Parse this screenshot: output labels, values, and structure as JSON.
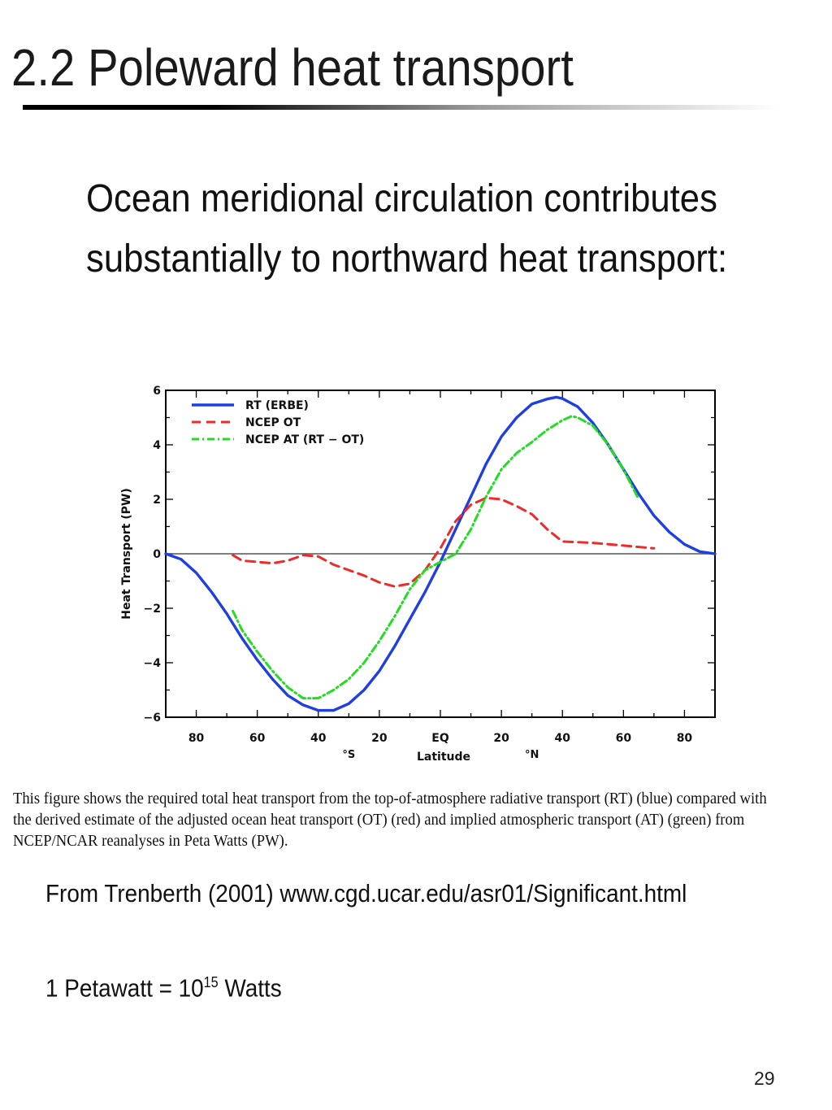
{
  "slide": {
    "title": "2.2 Poleward heat transport",
    "intro": "Ocean meridional circulation contributes substantially to northward heat transport:",
    "caption": "This figure shows the required total heat transport from the top-of-atmosphere radiative transport (RT) (blue) compared with the derived estimate of the adjusted ocean heat transport (OT) (red) and implied atmospheric transport (AT) (green) from NCEP/NCAR reanalyses in Peta  Watts (PW).",
    "source": "From Trenberth (2001) www.cgd.ucar.edu/asr01/Significant.html",
    "unit_note": {
      "prefix": "1 Petawatt = 10",
      "exponent": "15",
      "suffix": " Watts"
    },
    "page_number": "29"
  },
  "colors": {
    "rt": "#1f3fe0",
    "ot": "#ee2a2a",
    "at": "#22dd22",
    "zero_line": "#555555"
  },
  "chart_data": {
    "type": "line",
    "xlabel": "Latitude",
    "ylabel": "Heat Transport (PW)",
    "xlim": [
      -90,
      90
    ],
    "ylim": [
      -6,
      6
    ],
    "x_ticks": [
      {
        "value": -80,
        "label": "80"
      },
      {
        "value": -60,
        "label": "60"
      },
      {
        "value": -40,
        "label": "40"
      },
      {
        "value": -20,
        "label": "20"
      },
      {
        "value": 0,
        "label": "EQ"
      },
      {
        "value": 20,
        "label": "20"
      },
      {
        "value": 40,
        "label": "40"
      },
      {
        "value": 60,
        "label": "60"
      },
      {
        "value": 80,
        "label": "80"
      }
    ],
    "y_ticks": [
      {
        "value": -6,
        "label": "−6"
      },
      {
        "value": -4,
        "label": "−4"
      },
      {
        "value": -2,
        "label": "−2"
      },
      {
        "value": 0,
        "label": "0"
      },
      {
        "value": 2,
        "label": "2"
      },
      {
        "value": 4,
        "label": "4"
      },
      {
        "value": 6,
        "label": "6"
      }
    ],
    "hemisphere_labels": [
      {
        "value": -30,
        "label": "°S"
      },
      {
        "value": 30,
        "label": "°N"
      }
    ],
    "legend_position": "top-left",
    "series": [
      {
        "name": "RT (ERBE)",
        "style": "solid",
        "color": "#1f3fe0",
        "points": [
          [
            -90,
            0
          ],
          [
            -85,
            -0.2
          ],
          [
            -80,
            -0.7
          ],
          [
            -75,
            -1.4
          ],
          [
            -70,
            -2.2
          ],
          [
            -65,
            -3.1
          ],
          [
            -60,
            -3.9
          ],
          [
            -55,
            -4.6
          ],
          [
            -50,
            -5.2
          ],
          [
            -45,
            -5.55
          ],
          [
            -40,
            -5.75
          ],
          [
            -35,
            -5.75
          ],
          [
            -30,
            -5.5
          ],
          [
            -25,
            -5.0
          ],
          [
            -20,
            -4.3
          ],
          [
            -15,
            -3.4
          ],
          [
            -10,
            -2.4
          ],
          [
            -5,
            -1.4
          ],
          [
            0,
            -0.3
          ],
          [
            5,
            0.9
          ],
          [
            10,
            2.1
          ],
          [
            15,
            3.3
          ],
          [
            20,
            4.3
          ],
          [
            25,
            5.0
          ],
          [
            30,
            5.5
          ],
          [
            35,
            5.68
          ],
          [
            38,
            5.75
          ],
          [
            40,
            5.7
          ],
          [
            45,
            5.4
          ],
          [
            50,
            4.8
          ],
          [
            55,
            4.0
          ],
          [
            60,
            3.1
          ],
          [
            65,
            2.2
          ],
          [
            70,
            1.4
          ],
          [
            75,
            0.8
          ],
          [
            80,
            0.35
          ],
          [
            85,
            0.08
          ],
          [
            90,
            0
          ]
        ]
      },
      {
        "name": "NCEP OT",
        "style": "dashed",
        "color": "#ee2a2a",
        "points": [
          [
            -68,
            -0.05
          ],
          [
            -65,
            -0.25
          ],
          [
            -60,
            -0.3
          ],
          [
            -55,
            -0.35
          ],
          [
            -50,
            -0.25
          ],
          [
            -45,
            -0.05
          ],
          [
            -40,
            -0.1
          ],
          [
            -35,
            -0.4
          ],
          [
            -30,
            -0.6
          ],
          [
            -25,
            -0.8
          ],
          [
            -20,
            -1.05
          ],
          [
            -15,
            -1.2
          ],
          [
            -10,
            -1.1
          ],
          [
            -5,
            -0.6
          ],
          [
            0,
            0.2
          ],
          [
            5,
            1.2
          ],
          [
            10,
            1.8
          ],
          [
            15,
            2.05
          ],
          [
            20,
            2.0
          ],
          [
            25,
            1.75
          ],
          [
            30,
            1.45
          ],
          [
            35,
            0.9
          ],
          [
            40,
            0.45
          ],
          [
            50,
            0.4
          ],
          [
            60,
            0.3
          ],
          [
            70,
            0.2
          ]
        ]
      },
      {
        "name": "NCEP AT (RT − OT)",
        "style": "dashdot",
        "color": "#22dd22",
        "points": [
          [
            -68,
            -2.1
          ],
          [
            -65,
            -2.8
          ],
          [
            -60,
            -3.6
          ],
          [
            -55,
            -4.3
          ],
          [
            -50,
            -4.9
          ],
          [
            -45,
            -5.3
          ],
          [
            -40,
            -5.3
          ],
          [
            -35,
            -5.0
          ],
          [
            -30,
            -4.6
          ],
          [
            -25,
            -4.0
          ],
          [
            -20,
            -3.2
          ],
          [
            -15,
            -2.3
          ],
          [
            -10,
            -1.3
          ],
          [
            -5,
            -0.6
          ],
          [
            0,
            -0.3
          ],
          [
            5,
            0.0
          ],
          [
            10,
            0.9
          ],
          [
            15,
            2.1
          ],
          [
            20,
            3.1
          ],
          [
            25,
            3.7
          ],
          [
            30,
            4.1
          ],
          [
            35,
            4.55
          ],
          [
            40,
            4.9
          ],
          [
            43,
            5.05
          ],
          [
            45,
            5.0
          ],
          [
            50,
            4.7
          ],
          [
            55,
            4.0
          ],
          [
            60,
            3.1
          ],
          [
            65,
            2.0
          ]
        ]
      }
    ]
  }
}
